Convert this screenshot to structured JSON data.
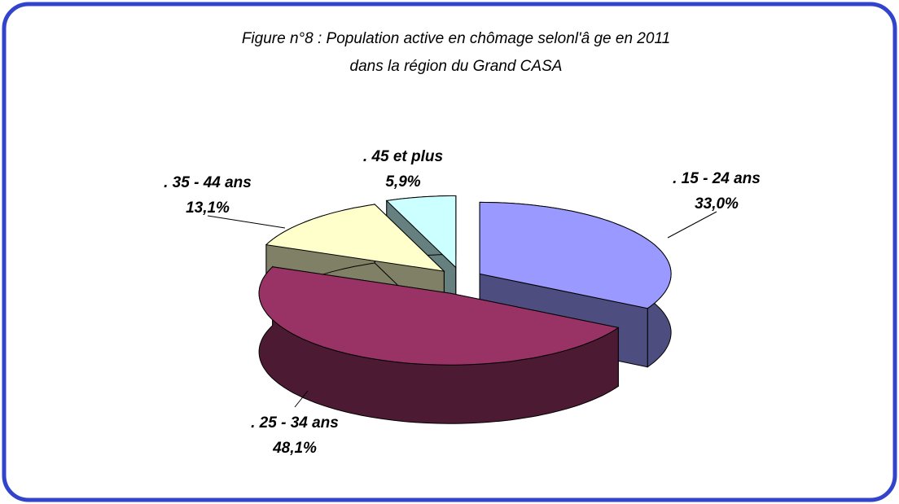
{
  "chart_data": {
    "type": "pie3d",
    "title": [
      "Figure n°8 : Population active en chômage selonl'â ge en 2011",
      "dans la région du Grand CASA"
    ],
    "categories": [
      ". 15 - 24 ans",
      ". 25 - 34 ans",
      ". 35 - 44 ans",
      ". 45  et plus"
    ],
    "values": [
      33.0,
      48.1,
      13.1,
      5.9
    ],
    "value_labels": [
      "33,0%",
      "48,1%",
      "13,1%",
      "5,9%"
    ],
    "colors": [
      "#9999ff",
      "#993366",
      "#ffffcc",
      "#ccffff"
    ]
  }
}
